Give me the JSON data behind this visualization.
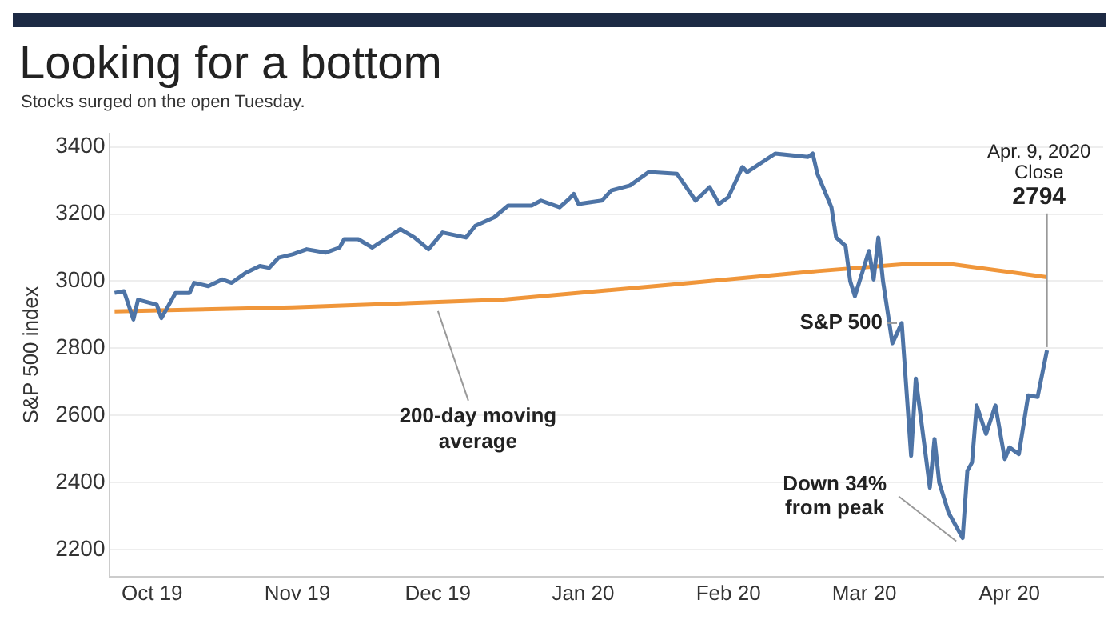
{
  "chart_data": {
    "type": "line",
    "title": "Looking for a bottom",
    "subtitle": "Stocks surged on the open Tuesday.",
    "ylabel": "S&P 500 index",
    "xlim": [
      "2019-09-22",
      "2020-04-21"
    ],
    "xticks": [
      {
        "value": "2019-10-01",
        "label": "Oct 19"
      },
      {
        "value": "2019-11-01",
        "label": "Nov 19"
      },
      {
        "value": "2019-12-01",
        "label": "Dec 19"
      },
      {
        "value": "2020-01-01",
        "label": "Jan 20"
      },
      {
        "value": "2020-02-01",
        "label": "Feb 20"
      },
      {
        "value": "2020-03-01",
        "label": "Mar 20"
      },
      {
        "value": "2020-04-01",
        "label": "Apr 20"
      }
    ],
    "ylim": [
      2120,
      3440
    ],
    "yticks": [
      2200,
      2400,
      2600,
      2800,
      3000,
      3200,
      3400
    ],
    "grid": "y",
    "legend": false,
    "marker": "none",
    "line_style": "solid",
    "series": [
      {
        "name": "S&P 500",
        "color": "#4e74a6",
        "x": [
          "2019-09-23",
          "2019-09-25",
          "2019-09-27",
          "2019-09-28",
          "2019-10-02",
          "2019-10-03",
          "2019-10-06",
          "2019-10-09",
          "2019-10-10",
          "2019-10-13",
          "2019-10-16",
          "2019-10-18",
          "2019-10-21",
          "2019-10-24",
          "2019-10-26",
          "2019-10-28",
          "2019-10-31",
          "2019-11-03",
          "2019-11-07",
          "2019-11-10",
          "2019-11-11",
          "2019-11-14",
          "2019-11-17",
          "2019-11-23",
          "2019-11-26",
          "2019-11-29",
          "2019-12-02",
          "2019-12-07",
          "2019-12-09",
          "2019-12-13",
          "2019-12-16",
          "2019-12-21",
          "2019-12-23",
          "2019-12-27",
          "2019-12-29",
          "2019-12-30",
          "2019-12-31",
          "2020-01-05",
          "2020-01-07",
          "2020-01-11",
          "2020-01-15",
          "2020-01-21",
          "2020-01-25",
          "2020-01-28",
          "2020-01-30",
          "2020-02-01",
          "2020-02-04",
          "2020-02-05",
          "2020-02-11",
          "2020-02-18",
          "2020-02-19",
          "2020-02-20",
          "2020-02-23",
          "2020-02-24",
          "2020-02-26",
          "2020-02-27",
          "2020-02-28",
          "2020-03-02",
          "2020-03-03",
          "2020-03-04",
          "2020-03-05",
          "2020-03-07",
          "2020-03-09",
          "2020-03-11",
          "2020-03-12",
          "2020-03-15",
          "2020-03-16",
          "2020-03-17",
          "2020-03-19",
          "2020-03-22",
          "2020-03-23",
          "2020-03-24",
          "2020-03-25",
          "2020-03-27",
          "2020-03-29",
          "2020-03-31",
          "2020-04-01",
          "2020-04-03",
          "2020-04-05",
          "2020-04-07",
          "2020-04-09"
        ],
        "values": [
          2965,
          2970,
          2886,
          2945,
          2930,
          2890,
          2965,
          2965,
          2995,
          2985,
          3005,
          2995,
          3025,
          3045,
          3040,
          3070,
          3080,
          3095,
          3085,
          3100,
          3125,
          3125,
          3100,
          3155,
          3130,
          3095,
          3145,
          3130,
          3165,
          3190,
          3225,
          3225,
          3240,
          3220,
          3245,
          3260,
          3230,
          3240,
          3270,
          3285,
          3325,
          3320,
          3240,
          3280,
          3230,
          3250,
          3340,
          3325,
          3380,
          3370,
          3380,
          3320,
          3220,
          3130,
          3105,
          3000,
          2955,
          3090,
          3005,
          3130,
          3000,
          2815,
          2875,
          2480,
          2710,
          2385,
          2530,
          2400,
          2310,
          2235,
          2435,
          2460,
          2630,
          2545,
          2630,
          2470,
          2505,
          2485,
          2660,
          2655,
          2794
        ]
      },
      {
        "name": "200-day moving average",
        "color": "#f0963a",
        "x": [
          "2019-09-23",
          "2019-10-31",
          "2019-12-15",
          "2020-01-20",
          "2020-02-20",
          "2020-03-09",
          "2020-03-20",
          "2020-04-09"
        ],
        "values": [
          2910,
          2922,
          2945,
          2990,
          3030,
          3050,
          3050,
          3012
        ]
      }
    ],
    "annotations": [
      {
        "text": "Apr. 9, 2020\nClose\n2794",
        "x": "2020-04-09",
        "y": 2794
      },
      {
        "text": "Down 34%\nfrom peak",
        "x": "2020-03-22",
        "y": 2235
      }
    ]
  }
}
